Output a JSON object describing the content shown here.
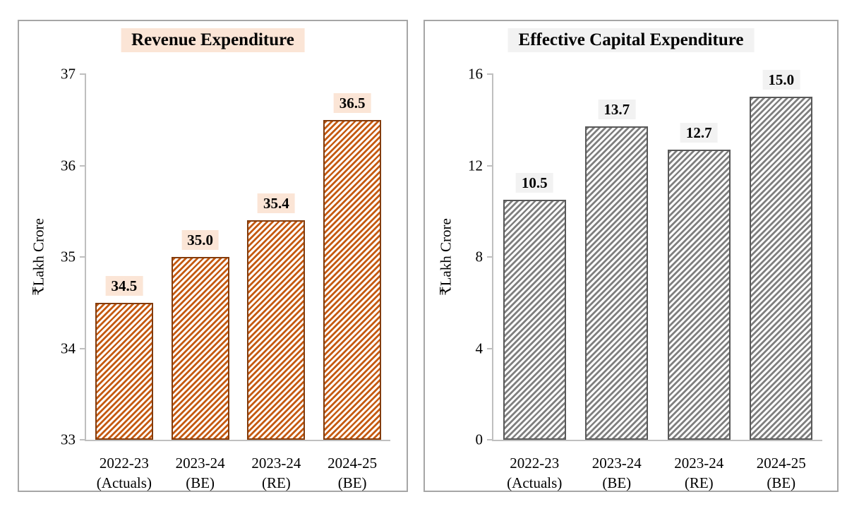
{
  "style": {
    "background": "#ffffff",
    "text_color": "#000000",
    "panel_border_color": "#a6a6a6",
    "axis_color": "#bfbfbf"
  },
  "chart_data": [
    {
      "type": "bar",
      "title": "Revenue Expenditure",
      "xlabel": "",
      "ylabel": "₹Lakh Crore",
      "ylim": [
        33,
        37
      ],
      "yticks": [
        33,
        34,
        35,
        36,
        37
      ],
      "grid": false,
      "legend": false,
      "categories": [
        "2022-23\n(Actuals)",
        "2023-24\n(BE)",
        "2023-24\n(RE)",
        "2024-25\n(BE)"
      ],
      "values": [
        34.5,
        35.0,
        35.4,
        36.5
      ],
      "value_labels": [
        "34.5",
        "35.0",
        "35.4",
        "36.5"
      ],
      "colors": {
        "hatch": "#c55a11",
        "bar_border": "#843c0c",
        "label_bg": "#fbe5d6",
        "title_bg": "#fbe5d6"
      }
    },
    {
      "type": "bar",
      "title": "Effective Capital Expenditure",
      "xlabel": "",
      "ylabel": "₹Lakh Crore",
      "ylim": [
        0,
        16
      ],
      "yticks": [
        0,
        4,
        8,
        12,
        16
      ],
      "grid": false,
      "legend": false,
      "categories": [
        "2022-23\n(Actuals)",
        "2023-24\n(BE)",
        "2023-24\n(RE)",
        "2024-25\n(BE)"
      ],
      "values": [
        10.5,
        13.7,
        12.7,
        15.0
      ],
      "value_labels": [
        "10.5",
        "13.7",
        "12.7",
        "15.0"
      ],
      "colors": {
        "hatch": "#7f7f7f",
        "bar_border": "#595959",
        "label_bg": "#f2f2f2",
        "title_bg": "#f2f2f2"
      }
    }
  ]
}
